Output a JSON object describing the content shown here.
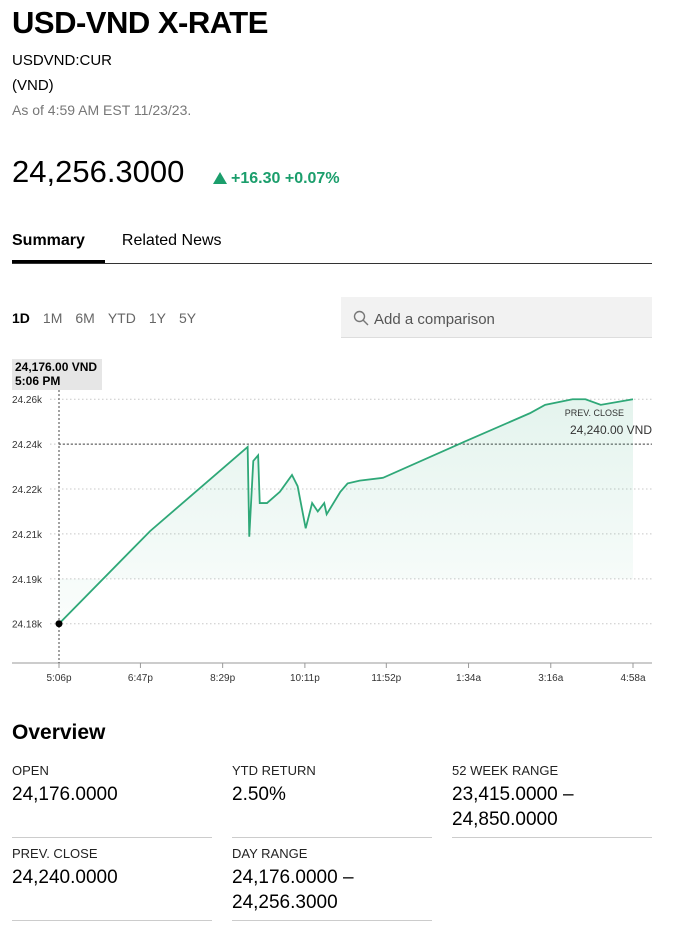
{
  "header": {
    "title": "USD-VND X-RATE",
    "ticker": "USDVND:CUR",
    "currency": "(VND)",
    "as_of": "As of 4:59 AM EST 11/23/23."
  },
  "quote": {
    "price": "24,256.3000",
    "change": "+16.30",
    "change_pct": "+0.07%"
  },
  "tabs": [
    "Summary",
    "Related News"
  ],
  "ranges": [
    "1D",
    "1M",
    "6M",
    "YTD",
    "1Y",
    "5Y"
  ],
  "search_placeholder": "Add a comparison",
  "chart_data": {
    "type": "line",
    "x": [
      0,
      113,
      234,
      236,
      241,
      247,
      249,
      258,
      274,
      289,
      296,
      306,
      314,
      321,
      329,
      332,
      349,
      358,
      373,
      402,
      504,
      584,
      603,
      637,
      653,
      672,
      712
    ],
    "series": [
      {
        "color": "#2fa878",
        "values": [
          24176,
          24209,
          24239,
          24207,
          24234,
          24236,
          24219,
          24219,
          24223,
          24229,
          24225,
          24210,
          24219,
          24216,
          24219,
          24215,
          24223,
          24226,
          24227,
          24228,
          24241,
          24251,
          24254,
          24256,
          24256,
          24254,
          24256
        ]
      }
    ],
    "xlim": [
      0,
      712
    ],
    "xticks": [
      {
        "value": 0,
        "label": "5:06p"
      },
      {
        "value": 101,
        "label": "6:47p"
      },
      {
        "value": 203,
        "label": "8:29p"
      },
      {
        "value": 305,
        "label": "10:11p"
      },
      {
        "value": 406,
        "label": "11:52p"
      },
      {
        "value": 508,
        "label": "1:34a"
      },
      {
        "value": 610,
        "label": "3:16a"
      },
      {
        "value": 712,
        "label": "4:58a"
      }
    ],
    "ylim": [
      24162,
      24260
    ],
    "yticks": [
      {
        "value": 24176,
        "label": "24.18k"
      },
      {
        "value": 24192,
        "label": "24.19k"
      },
      {
        "value": 24208,
        "label": "24.21k"
      },
      {
        "value": 24224,
        "label": "24.22k"
      },
      {
        "value": 24240,
        "label": "24.24k"
      },
      {
        "value": 24256,
        "label": "24.26k"
      }
    ],
    "grid": true,
    "tooltip": {
      "label": "24,176.00 VND",
      "time": "5:06 PM"
    },
    "reference_line": {
      "name": "PREV. CLOSE",
      "value": 24240,
      "label": "24,240.00 VND"
    }
  },
  "overview": {
    "title": "Overview",
    "items": [
      {
        "label": "OPEN",
        "value": "24,176.0000"
      },
      {
        "label": "YTD RETURN",
        "value": "2.50%"
      },
      {
        "label": "52 WEEK RANGE",
        "value": "23,415.0000 – 24,850.0000"
      },
      {
        "label": "PREV. CLOSE",
        "value": "24,240.0000"
      },
      {
        "label": "DAY RANGE",
        "value": "24,176.0000 – 24,256.3000"
      }
    ]
  }
}
